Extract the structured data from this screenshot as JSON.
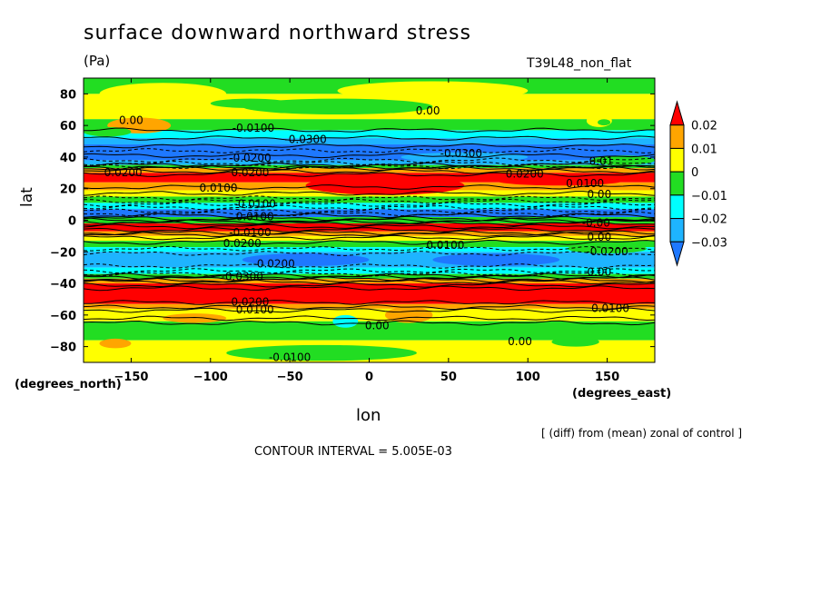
{
  "header": {
    "title": "surface downward northward stress",
    "units": "(Pa)",
    "run_name": "T39L48_non_flat"
  },
  "footer": {
    "diff_note": "[ (diff) from (mean) zonal of control ]",
    "contour_interval": "CONTOUR INTERVAL = 5.005E-03"
  },
  "colors": {
    "c_le_m03": "#1e78ff",
    "c_m03_m02": "#1eb4ff",
    "c_m02_m01": "#00ffff",
    "c_m01_0": "#22dd22",
    "c_0_01": "#ffff00",
    "c_01_02": "#ffa500",
    "c_ge_02": "#ff0000"
  },
  "chart_data": {
    "type": "heatmap",
    "title": "surface downward northward stress",
    "xlabel": "lon",
    "ylabel": "lat",
    "x_units": "(degrees_east)",
    "y_units": "(degrees_north)",
    "xlim": [
      -180,
      180
    ],
    "ylim": [
      -90,
      90
    ],
    "x_ticks": [
      {
        "v": -150,
        "label": "−150"
      },
      {
        "v": -100,
        "label": "−100"
      },
      {
        "v": -50,
        "label": "−50"
      },
      {
        "v": 0,
        "label": "0"
      },
      {
        "v": 50,
        "label": "50"
      },
      {
        "v": 100,
        "label": "100"
      },
      {
        "v": 150,
        "label": "150"
      }
    ],
    "y_ticks": [
      {
        "v": 80,
        "label": "80"
      },
      {
        "v": 60,
        "label": "60"
      },
      {
        "v": 40,
        "label": "40"
      },
      {
        "v": 20,
        "label": "20"
      },
      {
        "v": 0,
        "label": "0"
      },
      {
        "v": -20,
        "label": "−20"
      },
      {
        "v": -40,
        "label": "−40"
      },
      {
        "v": -60,
        "label": "−60"
      },
      {
        "v": -80,
        "label": "−80"
      }
    ],
    "colorbar": {
      "levels": [
        "0.02",
        "0.01",
        "0",
        "−0.01",
        "−0.02",
        "−0.03"
      ],
      "colors_top_to_bottom": [
        "#ff0000",
        "#ffa500",
        "#ffff00",
        "#22dd22",
        "#00ffff",
        "#1eb4ff",
        "#1e78ff"
      ]
    },
    "lat_bands": [
      {
        "lat": [
          80,
          90
        ],
        "color": "#22dd22"
      },
      {
        "lat": [
          64,
          80
        ],
        "color": "#ffff00"
      },
      {
        "lat": [
          57,
          64
        ],
        "color": "#22dd22"
      },
      {
        "lat": [
          52,
          57
        ],
        "color": "#00ffff"
      },
      {
        "lat": [
          48,
          52
        ],
        "color": "#1eb4ff"
      },
      {
        "lat": [
          38,
          48
        ],
        "color": "#1e78ff"
      },
      {
        "lat": [
          35,
          38
        ],
        "color": "#1eb4ff"
      },
      {
        "lat": [
          33,
          35
        ],
        "color": "#22dd22"
      },
      {
        "lat": [
          30,
          33
        ],
        "color": "#ffa500"
      },
      {
        "lat": [
          24,
          30
        ],
        "color": "#ff0000"
      },
      {
        "lat": [
          19,
          24
        ],
        "color": "#ffa500"
      },
      {
        "lat": [
          15,
          19
        ],
        "color": "#ffff00"
      },
      {
        "lat": [
          11,
          15
        ],
        "color": "#22dd22"
      },
      {
        "lat": [
          7,
          11
        ],
        "color": "#00ffff"
      },
      {
        "lat": [
          2,
          7
        ],
        "color": "#1e78ff"
      },
      {
        "lat": [
          -2,
          2
        ],
        "color": "#22dd22"
      },
      {
        "lat": [
          -7,
          -2
        ],
        "color": "#ff0000"
      },
      {
        "lat": [
          -10,
          -7
        ],
        "color": "#ffa500"
      },
      {
        "lat": [
          -13,
          -10
        ],
        "color": "#ffff00"
      },
      {
        "lat": [
          -17,
          -13
        ],
        "color": "#22dd22"
      },
      {
        "lat": [
          -20,
          -17
        ],
        "color": "#00ffff"
      },
      {
        "lat": [
          -30,
          -20
        ],
        "color": "#1eb4ff"
      },
      {
        "lat": [
          -34,
          -30
        ],
        "color": "#00ffff"
      },
      {
        "lat": [
          -37,
          -34
        ],
        "color": "#22dd22"
      },
      {
        "lat": [
          -40,
          -37
        ],
        "color": "#ffa500"
      },
      {
        "lat": [
          -53,
          -40
        ],
        "color": "#ff0000"
      },
      {
        "lat": [
          -56,
          -53
        ],
        "color": "#ffa500"
      },
      {
        "lat": [
          -64,
          -56
        ],
        "color": "#ffff00"
      },
      {
        "lat": [
          -76,
          -64
        ],
        "color": "#22dd22"
      },
      {
        "lat": [
          -90,
          -76
        ],
        "color": "#ffff00"
      }
    ],
    "patches": [
      {
        "lon": 10,
        "lat": 22,
        "rlon": 50,
        "rlat": 6,
        "color": "#ff0000"
      },
      {
        "lon": 120,
        "lat": 25,
        "rlon": 40,
        "rlat": 3,
        "color": "#ff0000"
      },
      {
        "lon": -145,
        "lat": 60,
        "rlon": 20,
        "rlat": 5,
        "color": "#ffa500"
      },
      {
        "lon": 145,
        "lat": 63,
        "rlon": 8,
        "rlat": 4,
        "color": "#ffff00"
      },
      {
        "lon": 148,
        "lat": 62,
        "rlon": 4,
        "rlat": 2,
        "color": "#22dd22"
      },
      {
        "lon": -130,
        "lat": 80,
        "rlon": 40,
        "rlat": 7,
        "color": "#ffff00"
      },
      {
        "lon": 40,
        "lat": 82,
        "rlon": 60,
        "rlat": 6,
        "color": "#ffff00"
      },
      {
        "lon": -20,
        "lat": 72,
        "rlon": 60,
        "rlat": 5,
        "color": "#22dd22"
      },
      {
        "lon": -75,
        "lat": 74,
        "rlon": 25,
        "rlat": 3,
        "color": "#22dd22"
      },
      {
        "lon": -165,
        "lat": 56,
        "rlon": 15,
        "rlat": 3,
        "color": "#22dd22"
      },
      {
        "lon": 60,
        "lat": 40,
        "rlon": 40,
        "rlat": 3,
        "color": "#1eb4ff"
      },
      {
        "lon": 160,
        "lat": 38,
        "rlon": 20,
        "rlat": 3,
        "color": "#22dd22"
      },
      {
        "lon": -40,
        "lat": -25,
        "rlon": 40,
        "rlat": 4,
        "color": "#1e78ff"
      },
      {
        "lon": 80,
        "lat": -25,
        "rlon": 40,
        "rlat": 4,
        "color": "#1e78ff"
      },
      {
        "lon": 150,
        "lat": -18,
        "rlon": 25,
        "rlat": 3,
        "color": "#22dd22"
      },
      {
        "lon": -110,
        "lat": -62,
        "rlon": 20,
        "rlat": 3,
        "color": "#ffa500"
      },
      {
        "lon": 25,
        "lat": -60,
        "rlon": 15,
        "rlat": 5,
        "color": "#ffa500"
      },
      {
        "lon": -15,
        "lat": -64,
        "rlon": 8,
        "rlat": 4,
        "color": "#00ffff"
      },
      {
        "lon": -30,
        "lat": -84,
        "rlon": 60,
        "rlat": 5,
        "color": "#22dd22"
      },
      {
        "lon": 130,
        "lat": -77,
        "rlon": 15,
        "rlat": 3,
        "color": "#22dd22"
      },
      {
        "lon": -160,
        "lat": -78,
        "rlon": 10,
        "rlat": 3,
        "color": "#ffa500"
      }
    ],
    "black_lines": [
      57,
      52,
      47,
      44,
      41,
      38,
      36,
      35,
      34,
      33.5,
      33,
      31,
      29,
      21,
      17,
      14,
      12,
      10,
      8,
      6,
      4,
      3,
      1,
      0,
      -1,
      -2,
      -4,
      -6,
      -8,
      -9,
      -11,
      -14,
      -18,
      -21,
      -29,
      -32,
      -34,
      -35,
      -36,
      -37,
      -38,
      -39,
      -41,
      -43,
      -52,
      -55,
      -57,
      -62,
      -65
    ],
    "contour_labels": [
      {
        "lon": -150,
        "lat": 61,
        "text": "0.00"
      },
      {
        "lon": -73,
        "lat": 56,
        "text": "-0.0100"
      },
      {
        "lon": -40,
        "lat": 49,
        "text": "-0.0300"
      },
      {
        "lon": 37,
        "lat": 67,
        "text": "0.00"
      },
      {
        "lon": 58,
        "lat": 40,
        "text": "-0.0300"
      },
      {
        "lon": 145,
        "lat": 35,
        "text": "-0.01"
      },
      {
        "lon": -155,
        "lat": 28,
        "text": "0.0200"
      },
      {
        "lon": -75,
        "lat": 37,
        "text": "-0.0200"
      },
      {
        "lon": -75,
        "lat": 28,
        "text": "0.0200"
      },
      {
        "lon": 98,
        "lat": 27,
        "text": "0.0200"
      },
      {
        "lon": 136,
        "lat": 21,
        "text": "0.0100"
      },
      {
        "lon": -95,
        "lat": 18,
        "text": "0.0100"
      },
      {
        "lon": 145,
        "lat": 14,
        "text": "0.00"
      },
      {
        "lon": -72,
        "lat": 8,
        "text": "-0.0100"
      },
      {
        "lon": -72,
        "lat": 0,
        "text": "0.0100"
      },
      {
        "lon": 143,
        "lat": -4,
        "text": "-0.00"
      },
      {
        "lon": -75,
        "lat": -10,
        "text": "-0.0100"
      },
      {
        "lon": -80,
        "lat": -17,
        "text": "0.0200"
      },
      {
        "lon": 48,
        "lat": -18,
        "text": "0.0100"
      },
      {
        "lon": 145,
        "lat": -13,
        "text": "0.00"
      },
      {
        "lon": 150,
        "lat": -22,
        "text": "-0.0200"
      },
      {
        "lon": -60,
        "lat": -30,
        "text": "-0.0200"
      },
      {
        "lon": -80,
        "lat": -38,
        "text": "-0.0300"
      },
      {
        "lon": 145,
        "lat": -35,
        "text": "0.00"
      },
      {
        "lon": -75,
        "lat": -54,
        "text": "0.0200"
      },
      {
        "lon": -72,
        "lat": -59,
        "text": "0.0100"
      },
      {
        "lon": 152,
        "lat": -58,
        "text": "0.0100"
      },
      {
        "lon": 5,
        "lat": -69,
        "text": "0.00"
      },
      {
        "lon": 95,
        "lat": -79,
        "text": "0.00"
      },
      {
        "lon": -50,
        "lat": -89,
        "text": "-0.0100"
      }
    ]
  }
}
